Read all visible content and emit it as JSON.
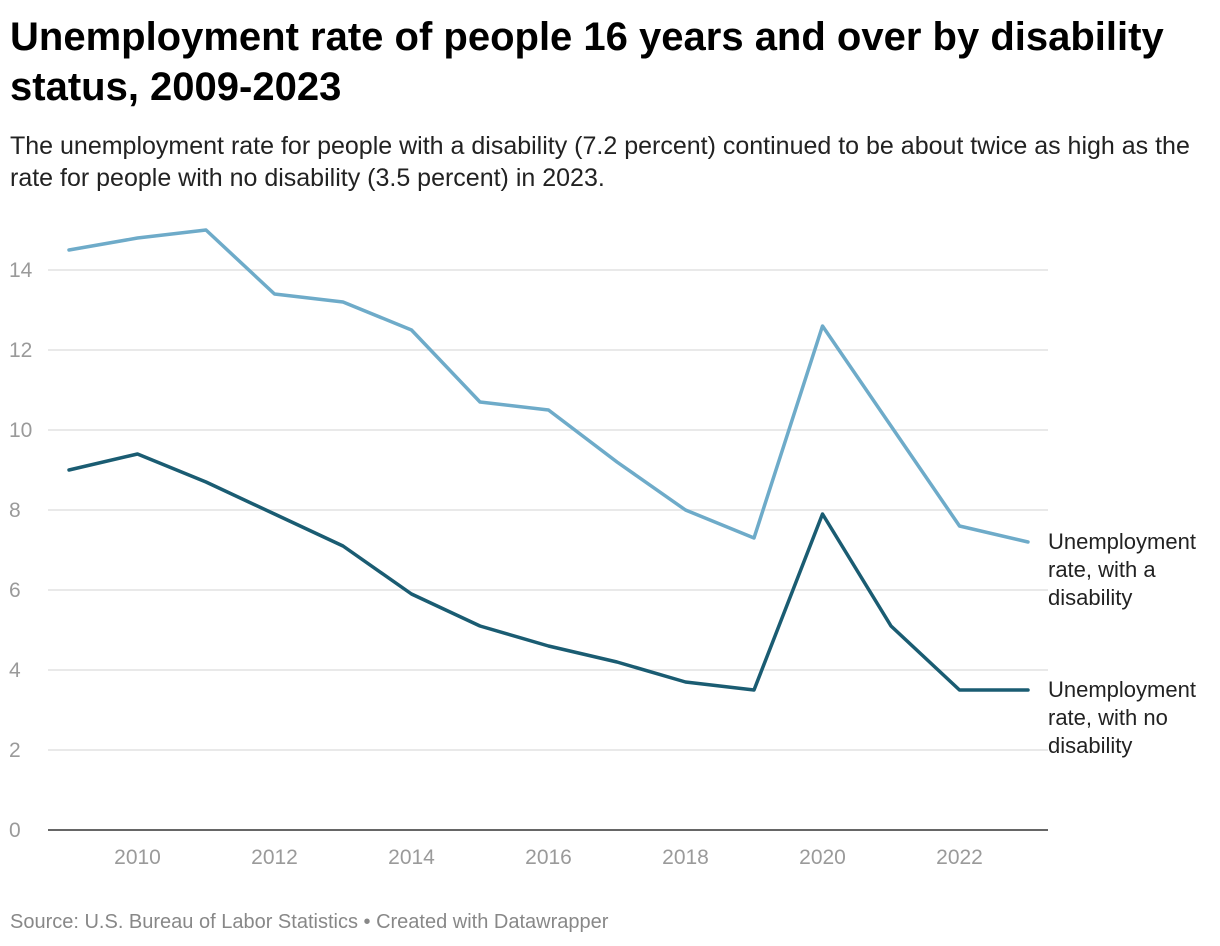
{
  "title": "Unemployment rate of people 16 years and over by disability status, 2009-2023",
  "subtitle": "The unemployment rate for people with a disability (7.2 percent) continued to be about twice as high as the rate for people with no disability (3.5 percent) in 2023.",
  "footer": {
    "source": "Source: U.S. Bureau of Labor Statistics",
    "separator": " • ",
    "credit": "Created with Datawrapper"
  },
  "colors": {
    "with_disability": "#6eabc9",
    "no_disability": "#1a5c72",
    "grid": "#e2e2e2",
    "baseline": "#333333"
  },
  "chart_data": {
    "type": "line",
    "title": "",
    "xlabel": "",
    "ylabel": "",
    "x": [
      2009,
      2010,
      2011,
      2012,
      2013,
      2014,
      2015,
      2016,
      2017,
      2018,
      2019,
      2020,
      2021,
      2022,
      2023
    ],
    "x_ticks": [
      2010,
      2012,
      2014,
      2016,
      2018,
      2020,
      2022
    ],
    "xlim": [
      2009,
      2023
    ],
    "ylim": [
      0,
      14
    ],
    "y_ticks": [
      0,
      2,
      4,
      6,
      8,
      10,
      12,
      14
    ],
    "grid": true,
    "legend": "direct labels at right end of lines",
    "series": [
      {
        "name": "Unemployment rate, with a disability",
        "label_lines": [
          "Unemployment",
          "rate, with a",
          "disability"
        ],
        "color": "#6eabc9",
        "values": [
          14.5,
          14.8,
          15.0,
          13.4,
          13.2,
          12.5,
          10.7,
          10.5,
          9.2,
          8.0,
          7.3,
          12.6,
          10.1,
          7.6,
          7.2
        ]
      },
      {
        "name": "Unemployment rate, with no disability",
        "label_lines": [
          "Unemployment",
          "rate, with no",
          "disability"
        ],
        "color": "#1a5c72",
        "values": [
          9.0,
          9.4,
          8.7,
          7.9,
          7.1,
          5.9,
          5.1,
          4.6,
          4.2,
          3.7,
          3.5,
          7.9,
          5.1,
          3.5,
          3.5
        ]
      }
    ]
  }
}
